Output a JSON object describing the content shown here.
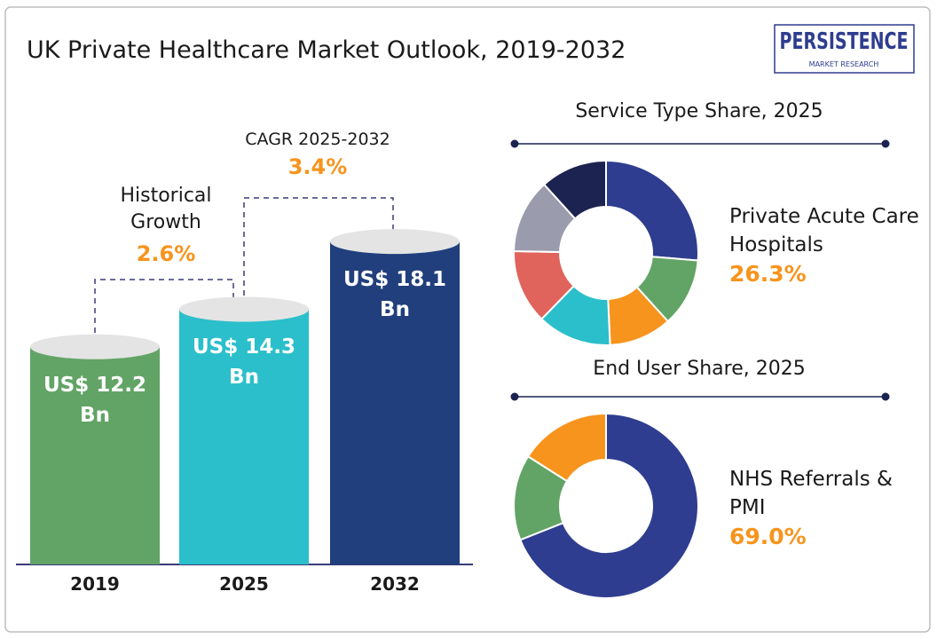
{
  "title": "UK Private Healthcare Market Outlook, 2019-2032",
  "logo": {
    "name": "PERSISTENCE",
    "tagline": "MARKET RESEARCH"
  },
  "chart_data": [
    {
      "type": "bar",
      "categories": [
        "2019",
        "2025",
        "2032"
      ],
      "values": [
        12.2,
        14.3,
        18.1
      ],
      "value_labels": [
        "US$ 12.2 Bn",
        "US$ 14.3 Bn",
        "US$ 18.1 Bn"
      ],
      "colors": [
        "#62a466",
        "#2bbfcb",
        "#203f7c"
      ],
      "ylim": [
        0,
        19
      ],
      "annotations": [
        {
          "label": "Historical Growth",
          "value": "2.6%"
        },
        {
          "label": "CAGR 2025-2032",
          "value": "3.4%"
        }
      ]
    },
    {
      "type": "pie",
      "title": "Service Type Share, 2025",
      "categories": [
        "Private Acute Care Hospitals",
        null,
        null,
        null,
        null,
        null,
        null
      ],
      "values": [
        26.3,
        12,
        11,
        13,
        13,
        13,
        11.7
      ],
      "value_labels": [
        "26.3%",
        null,
        null,
        null,
        null,
        null,
        null
      ],
      "colors": [
        "#2e3d8f",
        "#62a466",
        "#f7941d",
        "#2bbfcb",
        "#e0635c",
        "#9b9bae",
        "#1c2350"
      ]
    },
    {
      "type": "pie",
      "title": "End User Share, 2025",
      "categories": [
        "NHS Referrals & PMI",
        null,
        null
      ],
      "values": [
        69.0,
        15,
        16
      ],
      "value_labels": [
        "69.0%",
        null,
        null
      ],
      "colors": [
        "#2e3d8f",
        "#62a466",
        "#f7941d"
      ]
    }
  ]
}
